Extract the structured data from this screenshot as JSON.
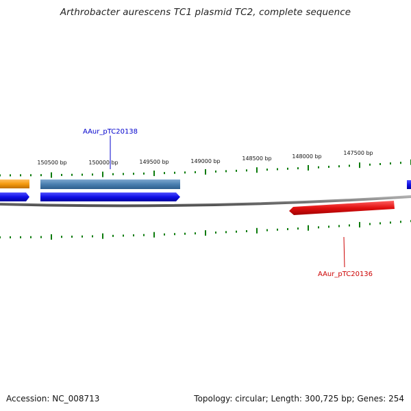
{
  "title": "Arthrobacter aurescens TC1 plasmid TC2, complete sequence",
  "ruler": {
    "tick_labels": [
      "150500 bp",
      "150000 bp",
      "149500 bp",
      "149000 bp",
      "148500 bp",
      "148000 bp",
      "147500 bp"
    ],
    "color": "#0a7a0a"
  },
  "features": [
    {
      "id": "orange-gene",
      "label": "",
      "color": "#f59a10",
      "strand": "forward",
      "track": "feature"
    },
    {
      "id": "steelblue-gene",
      "label": "",
      "color": "#4a7fb0",
      "strand": "forward",
      "track": "feature"
    },
    {
      "id": "blue-cds-left",
      "label": "",
      "color": "#1010e6",
      "strand": "forward",
      "track": "cds"
    },
    {
      "id": "blue-cds-main",
      "label": "",
      "color": "#1010e6",
      "strand": "forward",
      "track": "cds"
    },
    {
      "id": "blue-cds-right",
      "label": "",
      "color": "#1010e6",
      "strand": "forward",
      "track": "feature"
    },
    {
      "id": "red-cds",
      "label": "",
      "color": "#e01010",
      "strand": "reverse",
      "track": "cds"
    }
  ],
  "gene_labels": {
    "blue": {
      "text": "AAur_pTC20138",
      "color": "#0000cc"
    },
    "red": {
      "text": "AAur_pTC20136",
      "color": "#cc0000"
    }
  },
  "backbone_color": "#808080",
  "footer": {
    "accession": "Accession: NC_008713",
    "summary": "Topology: circular; Length: 300,725 bp; Genes: 254"
  }
}
